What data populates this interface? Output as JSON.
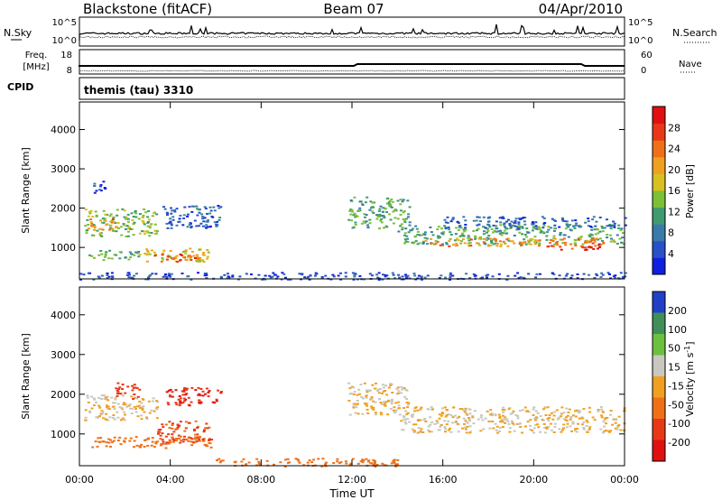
{
  "header": {
    "station": "Blackstone (fitACF)",
    "beam": "Beam 07",
    "date": "04/Apr/2010"
  },
  "chart_data": [
    {
      "type": "line",
      "panel": "noise",
      "left_label": "N.Sky",
      "right_label": "N.Search",
      "left_ticks": [
        "10^5",
        "10^0"
      ],
      "right_ticks": [
        "10^5",
        "10^0"
      ]
    },
    {
      "type": "line",
      "panel": "frequency",
      "left_label_1": "Freq.",
      "left_label_2": "[MHz]",
      "right_label": "Nave",
      "left_ticks": [
        "18",
        "8"
      ],
      "right_ticks": [
        "60",
        "0"
      ],
      "ylim_left": [
        8,
        18
      ],
      "ylim_right": [
        0,
        60
      ]
    },
    {
      "type": "table",
      "panel": "cpid",
      "label": "CPID",
      "value": "themis (tau) 3310"
    },
    {
      "type": "heatmap",
      "panel": "power",
      "ylabel": "Slant Range [km]",
      "yticks": [
        1000,
        2000,
        3000,
        4000
      ],
      "ylim": [
        200,
        4700
      ],
      "colorbar_label": "Power [dB]",
      "colorbar_ticks": [
        "28",
        "24",
        "20",
        "16",
        "12",
        "8",
        "4"
      ],
      "colorscale": [
        "#1020e0",
        "#2850c8",
        "#3a7aa8",
        "#3f9a70",
        "#7cc038",
        "#d8c020",
        "#f0a020",
        "#f07018",
        "#e83818",
        "#e01010"
      ],
      "blobs": [
        {
          "t": [
            0.2,
            3.4
          ],
          "r": [
            1300,
            2000
          ],
          "v": 14
        },
        {
          "t": [
            0.2,
            1.6
          ],
          "r": [
            1450,
            1750
          ],
          "v": 22
        },
        {
          "t": [
            0.4,
            2.6
          ],
          "r": [
            700,
            950
          ],
          "v": 12
        },
        {
          "t": [
            2.6,
            5.7
          ],
          "r": [
            650,
            1000
          ],
          "v": 18
        },
        {
          "t": [
            3.2,
            5.4
          ],
          "r": [
            650,
            850
          ],
          "v": 26
        },
        {
          "t": [
            3.6,
            6.2
          ],
          "r": [
            1500,
            2100
          ],
          "v": 6
        },
        {
          "t": [
            0.5,
            1.2
          ],
          "r": [
            2400,
            2700
          ],
          "v": 5
        },
        {
          "t": [
            11.8,
            14.5
          ],
          "r": [
            1500,
            2300
          ],
          "v": 12
        },
        {
          "t": [
            14.0,
            24.0
          ],
          "r": [
            1100,
            1600
          ],
          "v": 12
        },
        {
          "t": [
            15.0,
            23.5
          ],
          "r": [
            1050,
            1250
          ],
          "v": 22
        },
        {
          "t": [
            20.5,
            23.0
          ],
          "r": [
            950,
            1100
          ],
          "v": 28
        },
        {
          "t": [
            16.0,
            24.0
          ],
          "r": [
            1500,
            1800
          ],
          "v": 6
        },
        {
          "t": [
            0.0,
            24.0
          ],
          "r": [
            200,
            380
          ],
          "v": 4
        }
      ]
    },
    {
      "type": "heatmap",
      "panel": "velocity",
      "ylabel": "Slant Range [km]",
      "yticks": [
        1000,
        2000,
        3000,
        4000
      ],
      "ylim": [
        200,
        4700
      ],
      "xticks": [
        "00:00",
        "04:00",
        "08:00",
        "12:00",
        "16:00",
        "20:00",
        "00:00"
      ],
      "xlabel": "Time UT",
      "colorbar_label": "Velocity [m s^-1]",
      "colorbar_ticks": [
        "200",
        "100",
        "50",
        "15",
        "-15",
        "-50",
        "-100",
        "-200"
      ],
      "colorscale": [
        "#2040c8",
        "#3f8f5a",
        "#6cc040",
        "#c8c8c0",
        "#f0a020",
        "#f07018",
        "#e83818",
        "#e01010"
      ],
      "blobs": [
        {
          "t": [
            0.2,
            3.4
          ],
          "r": [
            1350,
            2000
          ],
          "v": 0
        },
        {
          "t": [
            0.4,
            5.8
          ],
          "r": [
            650,
            950
          ],
          "v": -40
        },
        {
          "t": [
            3.4,
            5.8
          ],
          "r": [
            800,
            1350
          ],
          "v": -80
        },
        {
          "t": [
            1.5,
            2.6
          ],
          "r": [
            1900,
            2300
          ],
          "v": -90
        },
        {
          "t": [
            3.8,
            6.2
          ],
          "r": [
            1700,
            2200
          ],
          "v": -150
        },
        {
          "t": [
            11.8,
            14.5
          ],
          "r": [
            1500,
            2300
          ],
          "v": 0
        },
        {
          "t": [
            14.0,
            24.0
          ],
          "r": [
            1050,
            1700
          ],
          "v": 0
        },
        {
          "t": [
            6.0,
            14.0
          ],
          "r": [
            200,
            400
          ],
          "v": -60
        }
      ]
    }
  ]
}
